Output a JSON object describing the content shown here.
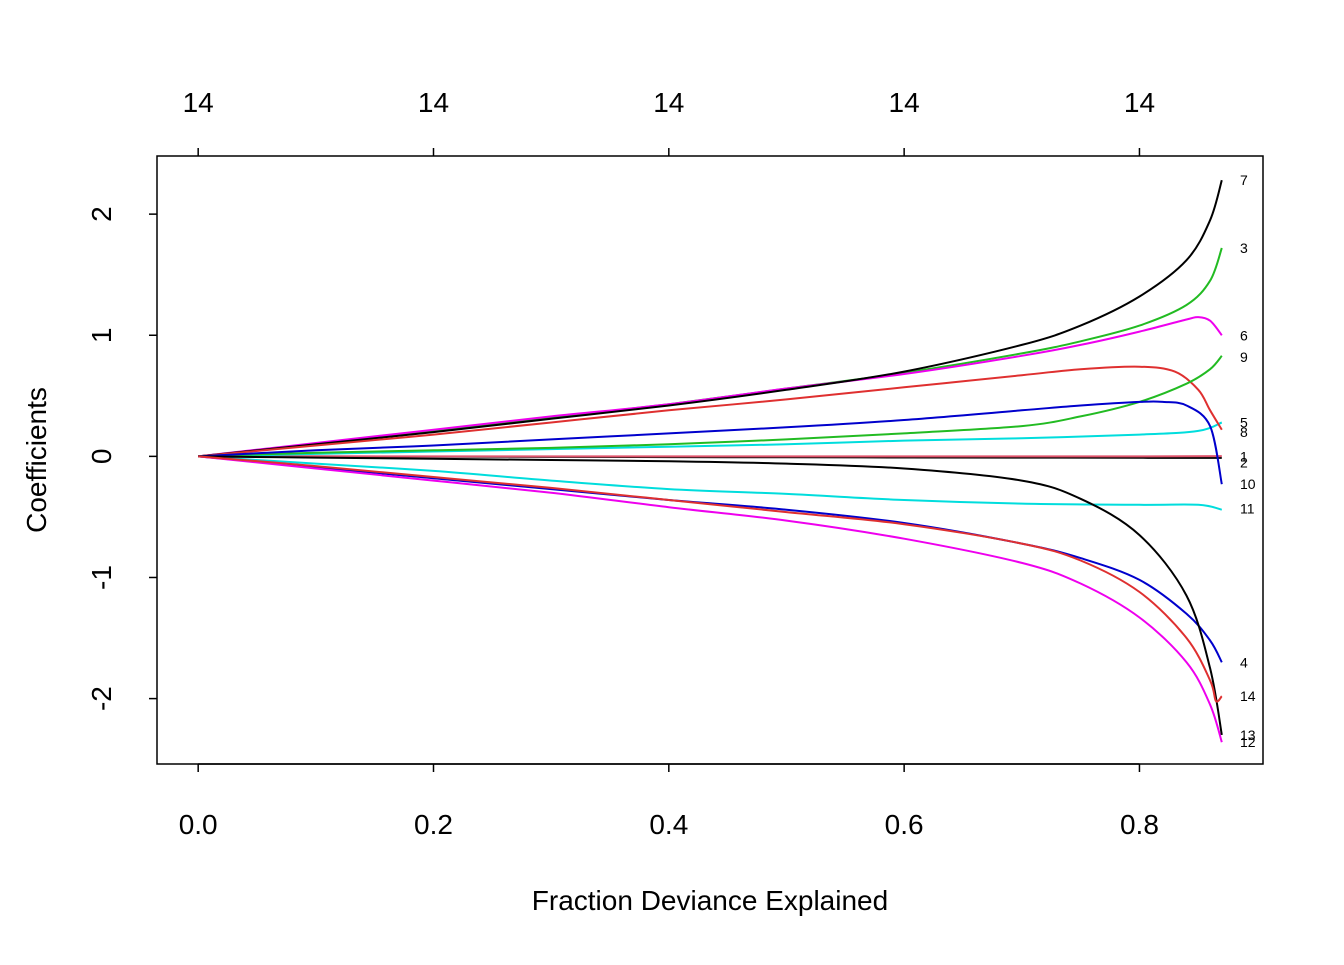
{
  "chart_data": {
    "type": "line",
    "title": "",
    "xlabel": "Fraction Deviance Explained",
    "ylabel": "Coefficients",
    "xlim": [
      -0.035,
      0.905
    ],
    "ylim": [
      -2.54,
      2.48
    ],
    "x_ticks": [
      0.0,
      0.2,
      0.4,
      0.6,
      0.8
    ],
    "x_tick_labels": [
      "0.0",
      "0.2",
      "0.4",
      "0.6",
      "0.8"
    ],
    "y_ticks": [
      -2,
      -1,
      0,
      1,
      2
    ],
    "y_tick_labels": [
      "-2",
      "-1",
      "0",
      "1",
      "2"
    ],
    "top_axis": {
      "ticks": [
        0.0,
        0.2,
        0.4,
        0.6,
        0.8
      ],
      "labels": [
        "14",
        "14",
        "14",
        "14",
        "14"
      ]
    },
    "grid": false,
    "legend": "none",
    "series": [
      {
        "label": "1",
        "color": "#000000",
        "points": [
          [
            0,
            0
          ],
          [
            0.1,
            0
          ],
          [
            0.2,
            -0.002
          ],
          [
            0.3,
            -0.004
          ],
          [
            0.4,
            -0.006
          ],
          [
            0.5,
            -0.008
          ],
          [
            0.6,
            -0.009
          ],
          [
            0.7,
            -0.01
          ],
          [
            0.8,
            -0.012
          ],
          [
            0.87,
            -0.013
          ]
        ]
      },
      {
        "label": "2",
        "color": "#DF536B",
        "points": [
          [
            0,
            0
          ],
          [
            0.1,
            0
          ],
          [
            0.2,
            0
          ],
          [
            0.3,
            0
          ],
          [
            0.4,
            0
          ],
          [
            0.5,
            0
          ],
          [
            0.6,
            0
          ],
          [
            0.7,
            0
          ],
          [
            0.8,
            0
          ],
          [
            0.87,
            0.002
          ]
        ]
      },
      {
        "label": "3",
        "color": "#22BB22",
        "points": [
          [
            0,
            0
          ],
          [
            0.1,
            0.1
          ],
          [
            0.2,
            0.21
          ],
          [
            0.3,
            0.32
          ],
          [
            0.4,
            0.43
          ],
          [
            0.5,
            0.56
          ],
          [
            0.6,
            0.69
          ],
          [
            0.7,
            0.85
          ],
          [
            0.75,
            0.95
          ],
          [
            0.8,
            1.08
          ],
          [
            0.84,
            1.25
          ],
          [
            0.86,
            1.45
          ],
          [
            0.87,
            1.72
          ]
        ]
      },
      {
        "label": "4",
        "color": "#0000CC",
        "points": [
          [
            0,
            0
          ],
          [
            0.1,
            -0.09
          ],
          [
            0.2,
            -0.18
          ],
          [
            0.3,
            -0.27
          ],
          [
            0.4,
            -0.36
          ],
          [
            0.5,
            -0.44
          ],
          [
            0.6,
            -0.55
          ],
          [
            0.7,
            -0.72
          ],
          [
            0.75,
            -0.84
          ],
          [
            0.8,
            -1.02
          ],
          [
            0.84,
            -1.3
          ],
          [
            0.86,
            -1.52
          ],
          [
            0.87,
            -1.7
          ]
        ]
      },
      {
        "label": "5",
        "color": "#00DDDD",
        "points": [
          [
            0,
            0
          ],
          [
            0.1,
            0.02
          ],
          [
            0.2,
            0.04
          ],
          [
            0.3,
            0.06
          ],
          [
            0.4,
            0.08
          ],
          [
            0.5,
            0.1
          ],
          [
            0.6,
            0.13
          ],
          [
            0.7,
            0.15
          ],
          [
            0.8,
            0.18
          ],
          [
            0.85,
            0.21
          ],
          [
            0.87,
            0.28
          ]
        ]
      },
      {
        "label": "6",
        "color": "#EE00EE",
        "points": [
          [
            0,
            0
          ],
          [
            0.1,
            0.11
          ],
          [
            0.2,
            0.22
          ],
          [
            0.3,
            0.33
          ],
          [
            0.4,
            0.43
          ],
          [
            0.5,
            0.56
          ],
          [
            0.6,
            0.68
          ],
          [
            0.7,
            0.83
          ],
          [
            0.75,
            0.92
          ],
          [
            0.8,
            1.03
          ],
          [
            0.84,
            1.13
          ],
          [
            0.85,
            1.15
          ],
          [
            0.86,
            1.12
          ],
          [
            0.87,
            1.0
          ]
        ]
      },
      {
        "label": "7",
        "color": "#000000",
        "points": [
          [
            0,
            0
          ],
          [
            0.1,
            0.1
          ],
          [
            0.2,
            0.2
          ],
          [
            0.3,
            0.31
          ],
          [
            0.4,
            0.42
          ],
          [
            0.5,
            0.55
          ],
          [
            0.6,
            0.7
          ],
          [
            0.7,
            0.92
          ],
          [
            0.75,
            1.08
          ],
          [
            0.8,
            1.32
          ],
          [
            0.84,
            1.62
          ],
          [
            0.86,
            1.95
          ],
          [
            0.87,
            2.28
          ]
        ]
      },
      {
        "label": "8",
        "color": "#DF3030",
        "points": [
          [
            0,
            0
          ],
          [
            0.1,
            0.09
          ],
          [
            0.2,
            0.18
          ],
          [
            0.3,
            0.28
          ],
          [
            0.4,
            0.38
          ],
          [
            0.5,
            0.47
          ],
          [
            0.6,
            0.57
          ],
          [
            0.7,
            0.67
          ],
          [
            0.75,
            0.72
          ],
          [
            0.8,
            0.74
          ],
          [
            0.83,
            0.7
          ],
          [
            0.85,
            0.55
          ],
          [
            0.86,
            0.38
          ],
          [
            0.87,
            0.22
          ]
        ]
      },
      {
        "label": "9",
        "color": "#22BB22",
        "points": [
          [
            0,
            0
          ],
          [
            0.1,
            0.03
          ],
          [
            0.2,
            0.05
          ],
          [
            0.3,
            0.07
          ],
          [
            0.4,
            0.1
          ],
          [
            0.5,
            0.14
          ],
          [
            0.6,
            0.19
          ],
          [
            0.7,
            0.25
          ],
          [
            0.75,
            0.33
          ],
          [
            0.8,
            0.45
          ],
          [
            0.84,
            0.6
          ],
          [
            0.86,
            0.72
          ],
          [
            0.87,
            0.83
          ]
        ]
      },
      {
        "label": "10",
        "color": "#0000CC",
        "points": [
          [
            0,
            0
          ],
          [
            0.1,
            0.05
          ],
          [
            0.2,
            0.09
          ],
          [
            0.3,
            0.14
          ],
          [
            0.4,
            0.19
          ],
          [
            0.5,
            0.24
          ],
          [
            0.6,
            0.3
          ],
          [
            0.7,
            0.38
          ],
          [
            0.75,
            0.42
          ],
          [
            0.8,
            0.45
          ],
          [
            0.82,
            0.45
          ],
          [
            0.84,
            0.42
          ],
          [
            0.86,
            0.25
          ],
          [
            0.87,
            -0.23
          ]
        ]
      },
      {
        "label": "11",
        "color": "#00DDDD",
        "points": [
          [
            0,
            0
          ],
          [
            0.1,
            -0.06
          ],
          [
            0.2,
            -0.12
          ],
          [
            0.3,
            -0.2
          ],
          [
            0.4,
            -0.27
          ],
          [
            0.5,
            -0.31
          ],
          [
            0.6,
            -0.36
          ],
          [
            0.7,
            -0.39
          ],
          [
            0.8,
            -0.4
          ],
          [
            0.85,
            -0.4
          ],
          [
            0.87,
            -0.44
          ]
        ]
      },
      {
        "label": "12",
        "color": "#EE00EE",
        "points": [
          [
            0,
            0
          ],
          [
            0.1,
            -0.1
          ],
          [
            0.2,
            -0.2
          ],
          [
            0.3,
            -0.3
          ],
          [
            0.4,
            -0.42
          ],
          [
            0.5,
            -0.53
          ],
          [
            0.6,
            -0.68
          ],
          [
            0.7,
            -0.88
          ],
          [
            0.75,
            -1.05
          ],
          [
            0.8,
            -1.33
          ],
          [
            0.84,
            -1.7
          ],
          [
            0.86,
            -2.05
          ],
          [
            0.87,
            -2.36
          ]
        ]
      },
      {
        "label": "13",
        "color": "#000000",
        "points": [
          [
            0,
            0
          ],
          [
            0.1,
            -0.01
          ],
          [
            0.2,
            -0.02
          ],
          [
            0.3,
            -0.03
          ],
          [
            0.4,
            -0.04
          ],
          [
            0.5,
            -0.06
          ],
          [
            0.6,
            -0.1
          ],
          [
            0.7,
            -0.2
          ],
          [
            0.75,
            -0.35
          ],
          [
            0.8,
            -0.65
          ],
          [
            0.84,
            -1.15
          ],
          [
            0.86,
            -1.75
          ],
          [
            0.87,
            -2.3
          ]
        ]
      },
      {
        "label": "14",
        "color": "#DF3030",
        "points": [
          [
            0,
            0
          ],
          [
            0.1,
            -0.08
          ],
          [
            0.2,
            -0.17
          ],
          [
            0.3,
            -0.26
          ],
          [
            0.4,
            -0.36
          ],
          [
            0.5,
            -0.46
          ],
          [
            0.6,
            -0.56
          ],
          [
            0.7,
            -0.72
          ],
          [
            0.75,
            -0.86
          ],
          [
            0.8,
            -1.12
          ],
          [
            0.84,
            -1.5
          ],
          [
            0.86,
            -1.85
          ],
          [
            0.865,
            -2.02
          ],
          [
            0.87,
            -1.98
          ]
        ]
      }
    ],
    "end_labels": [
      {
        "text": "7",
        "y": 2.28
      },
      {
        "text": "3",
        "y": 1.72
      },
      {
        "text": "6",
        "y": 1.0
      },
      {
        "text": "9",
        "y": 0.82
      },
      {
        "text": "5",
        "y": 0.28
      },
      {
        "text": "8",
        "y": 0.2
      },
      {
        "text": "1",
        "y": 0.0
      },
      {
        "text": "2",
        "y": -0.02
      },
      {
        "text": "10",
        "y": -0.23
      },
      {
        "text": "11",
        "y": -0.43
      },
      {
        "text": "4",
        "y": -1.7
      },
      {
        "text": "14",
        "y": -1.98
      },
      {
        "text": "13",
        "y": -2.3
      },
      {
        "text": "12",
        "y": -2.36
      }
    ]
  }
}
